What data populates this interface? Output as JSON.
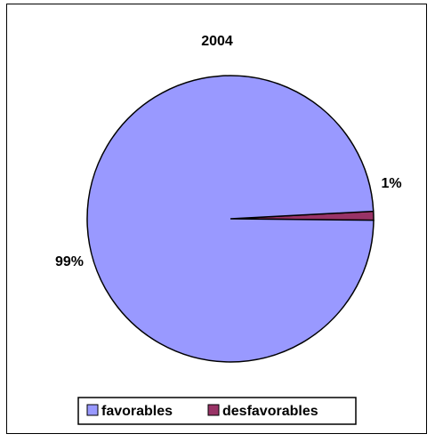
{
  "chart_data": {
    "type": "pie",
    "title": "2004",
    "categories": [
      "favorables",
      "desfavorables"
    ],
    "values": [
      99,
      1
    ],
    "labels": [
      "99%",
      "1%"
    ],
    "colors": [
      "#9999FF",
      "#993366"
    ],
    "legend": {
      "position": "bottom",
      "entries": [
        "favorables",
        "desfavorables"
      ]
    }
  }
}
